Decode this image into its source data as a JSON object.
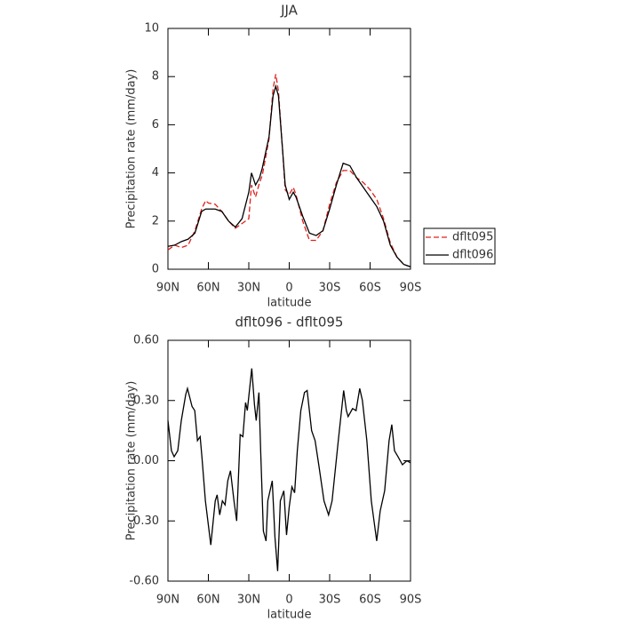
{
  "chart_data": [
    {
      "type": "line",
      "title": "JJA",
      "x_label": "latitude",
      "y_label": "Precipitation rate (mm/day)",
      "x": [
        90,
        85,
        80,
        75,
        70,
        65,
        62,
        60,
        55,
        50,
        45,
        40,
        35,
        30,
        28,
        25,
        22,
        20,
        15,
        12,
        10,
        8,
        5,
        3,
        0,
        -3,
        -5,
        -10,
        -15,
        -20,
        -25,
        -30,
        -35,
        -40,
        -45,
        -50,
        -55,
        -60,
        -65,
        -70,
        -75,
        -80,
        -85,
        -90
      ],
      "series": [
        {
          "name": "dflt095",
          "color": "#e0201b",
          "dashed": true,
          "values": [
            0.8,
            1.0,
            0.9,
            1.0,
            1.6,
            2.5,
            2.85,
            2.75,
            2.7,
            2.4,
            2.0,
            1.7,
            1.9,
            2.1,
            3.5,
            3.0,
            3.6,
            3.9,
            5.4,
            7.5,
            8.1,
            7.4,
            5.0,
            3.3,
            3.1,
            3.4,
            3.1,
            2.0,
            1.2,
            1.2,
            1.6,
            2.7,
            3.6,
            4.1,
            4.1,
            3.8,
            3.6,
            3.3,
            2.9,
            2.1,
            1.1,
            0.5,
            0.2,
            0.1
          ]
        },
        {
          "name": "dflt096",
          "color": "#000000",
          "dashed": false,
          "values": [
            0.95,
            1.0,
            1.15,
            1.25,
            1.5,
            2.4,
            2.5,
            2.5,
            2.5,
            2.4,
            2.0,
            1.75,
            2.1,
            3.2,
            4.0,
            3.5,
            3.8,
            4.2,
            5.5,
            7.2,
            7.6,
            7.2,
            5.0,
            3.5,
            2.9,
            3.2,
            3.0,
            2.2,
            1.5,
            1.4,
            1.6,
            2.5,
            3.5,
            4.4,
            4.3,
            3.8,
            3.4,
            3.0,
            2.6,
            2.0,
            1.0,
            0.5,
            0.2,
            0.1
          ]
        }
      ],
      "xlim": [
        90,
        -90
      ],
      "xticks": [
        {
          "value": 90,
          "label": "90N"
        },
        {
          "value": 60,
          "label": "60N"
        },
        {
          "value": 30,
          "label": "30N"
        },
        0,
        {
          "value": -30,
          "label": "30S"
        },
        {
          "value": -60,
          "label": "60S"
        },
        {
          "value": -90,
          "label": "90S"
        }
      ],
      "ylim": [
        0,
        10
      ],
      "yticks": [
        0,
        2,
        4,
        6,
        8,
        10
      ],
      "legend": "right"
    },
    {
      "type": "line",
      "title": "dflt096 - dflt095",
      "x_label": "latitude",
      "y_label": "Precipitation rate (mm/day)",
      "x": [
        90,
        87.4,
        85.4,
        82.7,
        80.1,
        76.8,
        75.5,
        72.1,
        70.1,
        68.1,
        66.1,
        64.8,
        62.2,
        58.2,
        54.9,
        53.5,
        51.6,
        49.6,
        47.6,
        45.6,
        43.6,
        41,
        39,
        36.4,
        34.4,
        32.4,
        31.1,
        27.8,
        25.8,
        24.5,
        22.5,
        21.2,
        19.2,
        17.2,
        15.9,
        12.6,
        10.6,
        8.6,
        6.6,
        4,
        2,
        0,
        -2,
        -4,
        -6,
        -8.6,
        -11.3,
        -13.3,
        -16.6,
        -19.2,
        -21.9,
        -25.8,
        -29.2,
        -31.8,
        -36.4,
        -40.4,
        -42.4,
        -43.7,
        -47,
        -49.6,
        -52.3,
        -54.3,
        -57.6,
        -60.9,
        -64.9,
        -67.5,
        -70.8,
        -74.1,
        -76.1,
        -78.1,
        -80.7,
        -84,
        -87.3,
        -90
      ],
      "values": [
        0.2,
        0.05,
        0.02,
        0.05,
        0.2,
        0.33,
        0.36,
        0.27,
        0.25,
        0.1,
        0.12,
        0.02,
        -0.2,
        -0.42,
        -0.2,
        -0.17,
        -0.27,
        -0.2,
        -0.22,
        -0.1,
        -0.05,
        -0.2,
        -0.3,
        0.13,
        0.12,
        0.29,
        0.25,
        0.46,
        0.28,
        0.2,
        0.34,
        0.05,
        -0.35,
        -0.4,
        -0.2,
        -0.1,
        -0.38,
        -0.55,
        -0.2,
        -0.15,
        -0.37,
        -0.23,
        -0.13,
        -0.16,
        0.05,
        0.25,
        0.34,
        0.35,
        0.15,
        0.1,
        -0.02,
        -0.2,
        -0.27,
        -0.2,
        0.1,
        0.35,
        0.25,
        0.22,
        0.26,
        0.25,
        0.36,
        0.3,
        0.1,
        -0.2,
        -0.4,
        -0.25,
        -0.15,
        0.1,
        0.18,
        0.05,
        0.02,
        -0.02,
        0,
        -0.01
      ],
      "color": "#000000",
      "xlim": [
        90,
        -90
      ],
      "xticks": [
        {
          "value": 90,
          "label": "90N"
        },
        {
          "value": 60,
          "label": "60N"
        },
        {
          "value": 30,
          "label": "30N"
        },
        0,
        {
          "value": -30,
          "label": "30S"
        },
        {
          "value": -60,
          "label": "60S"
        },
        {
          "value": -90,
          "label": "90S"
        }
      ],
      "ylim": [
        -0.6,
        0.6
      ],
      "yticks": [
        {
          "value": -0.6,
          "label": "-0.60"
        },
        {
          "value": -0.3,
          "label": "-0.30"
        },
        {
          "value": 0,
          "label": "0.00"
        },
        {
          "value": 0.3,
          "label": "0.30"
        },
        {
          "value": 0.6,
          "label": "0.60"
        }
      ]
    }
  ]
}
